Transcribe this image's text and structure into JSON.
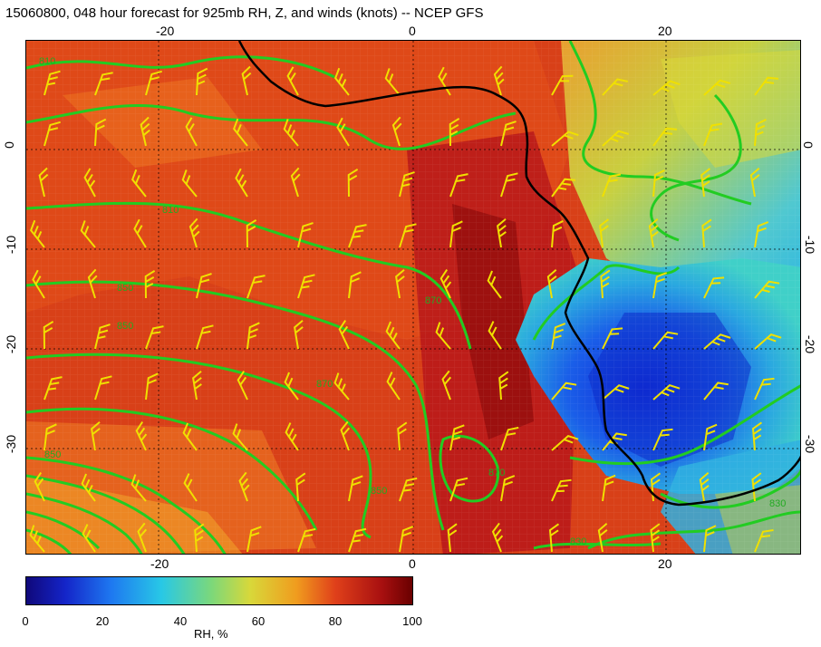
{
  "title": "15060800, 048 hour forecast for 925mb RH, Z, and winds (knots) -- NCEP GFS",
  "map": {
    "lon_ticks": [
      "-20",
      "0",
      "20"
    ],
    "lat_ticks": [
      "0",
      "-10",
      "-20",
      "-30"
    ],
    "contour_labels": [
      "810",
      "850",
      "870",
      "830"
    ]
  },
  "colorbar": {
    "ticks": [
      "0",
      "20",
      "40",
      "60",
      "80",
      "100"
    ],
    "label": "RH, %",
    "colors": [
      "#10087a",
      "#1424c8",
      "#1e78f0",
      "#28c8e6",
      "#7cd87a",
      "#d8d83a",
      "#f09c1e",
      "#e0401a",
      "#a81010",
      "#6a0000"
    ]
  }
}
